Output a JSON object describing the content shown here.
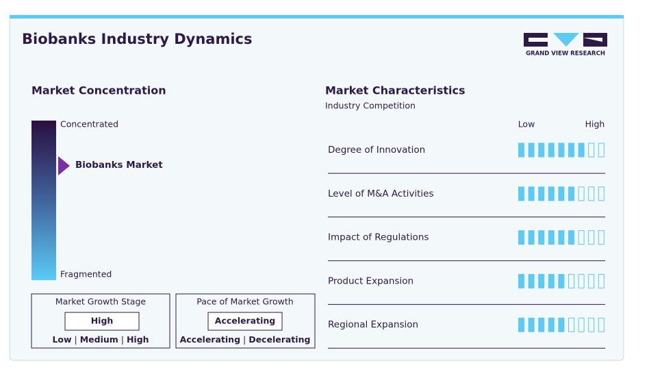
{
  "header": {
    "title": "Biobanks Industry Dynamics",
    "logo_text": "GRAND VIEW RESEARCH"
  },
  "concentration": {
    "title": "Market Concentration",
    "top_label": "Concentrated",
    "bottom_label": "Fragmented",
    "market_label": "Biobanks Market"
  },
  "growth_stage": {
    "title": "Market Growth Stage",
    "value": "High",
    "options": [
      "Low",
      "Medium",
      "High"
    ]
  },
  "growth_pace": {
    "title": "Pace of Market Growth",
    "value": "Accelerating",
    "options": [
      "Accelerating",
      "Decelerating"
    ]
  },
  "characteristics": {
    "title": "Market Characteristics",
    "subtitle": "Industry Competition",
    "low_label": "Low",
    "high_label": "High",
    "segments": 9,
    "rows": [
      {
        "name": "Degree of Innovation",
        "rating": 7
      },
      {
        "name": "Level of M&A Activities",
        "rating": 6
      },
      {
        "name": "Impact of Regulations",
        "rating": 6
      },
      {
        "name": "Product Expansion",
        "rating": 5
      },
      {
        "name": "Regional Expansion",
        "rating": 5
      }
    ]
  }
}
